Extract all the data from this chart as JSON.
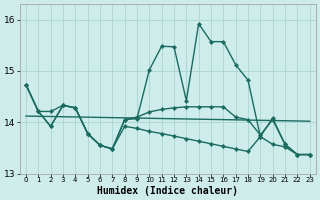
{
  "xlabel": "Humidex (Indice chaleur)",
  "background_color": "#ceecea",
  "grid_color": "#aad4d0",
  "line_color": "#1a6b60",
  "xlim": [
    -0.5,
    23.5
  ],
  "ylim": [
    13.0,
    16.3
  ],
  "yticks": [
    13,
    14,
    15,
    16
  ],
  "line_main": [
    14.73,
    14.21,
    14.21,
    14.33,
    14.28,
    13.78,
    13.55,
    13.48,
    14.05,
    14.07,
    15.02,
    15.48,
    15.47,
    14.42,
    15.92,
    15.57,
    15.57,
    15.12,
    14.82,
    13.72,
    14.08,
    13.57,
    13.37,
    13.37
  ],
  "line_flat": [
    14.73,
    14.21,
    13.92,
    14.33,
    14.28,
    13.78,
    13.55,
    13.48,
    14.05,
    14.1,
    14.2,
    14.25,
    14.28,
    14.3,
    14.3,
    14.3,
    14.3,
    14.1,
    14.05,
    13.75,
    14.05,
    13.57,
    13.37,
    13.37
  ],
  "line_trend_x": [
    0,
    23
  ],
  "line_trend_y": [
    14.12,
    14.02
  ],
  "line_desc": [
    14.73,
    14.21,
    13.92,
    14.33,
    14.28,
    13.78,
    13.55,
    13.48,
    13.92,
    13.88,
    13.82,
    13.78,
    13.73,
    13.68,
    13.63,
    13.58,
    13.53,
    13.48,
    13.43,
    13.72,
    13.57,
    13.52,
    13.37,
    13.37
  ]
}
